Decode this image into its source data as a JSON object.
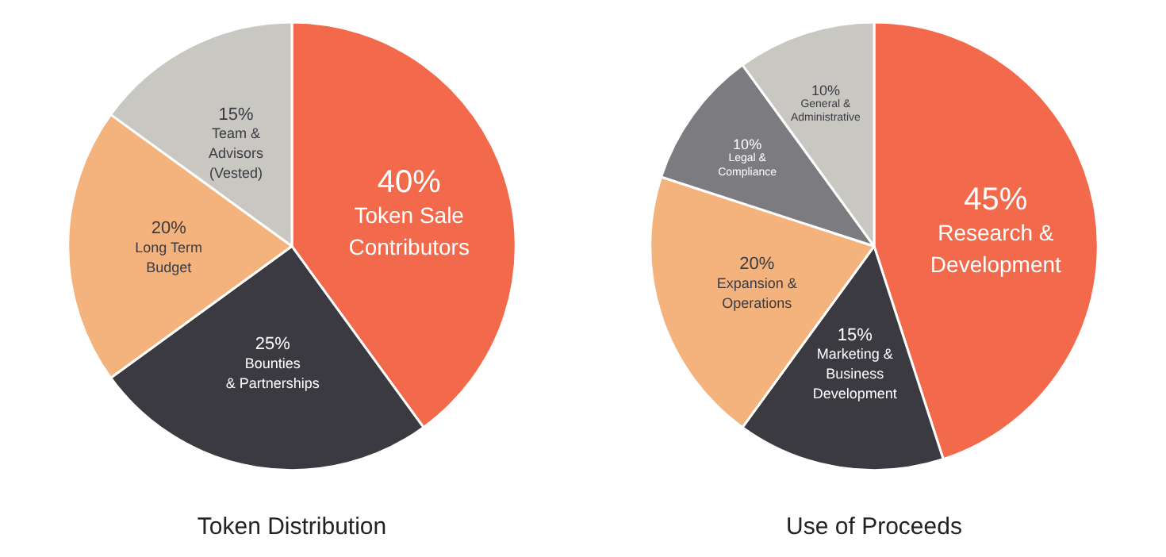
{
  "chart_data": [
    {
      "type": "pie",
      "title": "Token Distribution",
      "categories": [
        "Token Sale\nContributors",
        "Bounties\n& Partnerships",
        "Long Term\nBudget",
        "Team &\nAdvisors\n(Vested)"
      ],
      "values": [
        40,
        25,
        20,
        15
      ],
      "value_labels": [
        "40%",
        "25%",
        "20%",
        "15%"
      ],
      "colors": [
        "#f26a4b",
        "#3b3a41",
        "#f4b27c",
        "#c9c7c1"
      ]
    },
    {
      "type": "pie",
      "title": "Use of Proceeds",
      "categories": [
        "Research &\nDevelopment",
        "Marketing &\nBusiness\nDevelopment",
        "Expansion &\nOperations",
        "Legal &\nCompliance",
        "General &\nAdministrative"
      ],
      "values": [
        45,
        15,
        20,
        10,
        10
      ],
      "value_labels": [
        "45%",
        "15%",
        "20%",
        "10%",
        "10%"
      ],
      "colors": [
        "#f26a4b",
        "#3b3a41",
        "#f4b27c",
        "#7b7b80",
        "#c9c7c1"
      ]
    }
  ]
}
